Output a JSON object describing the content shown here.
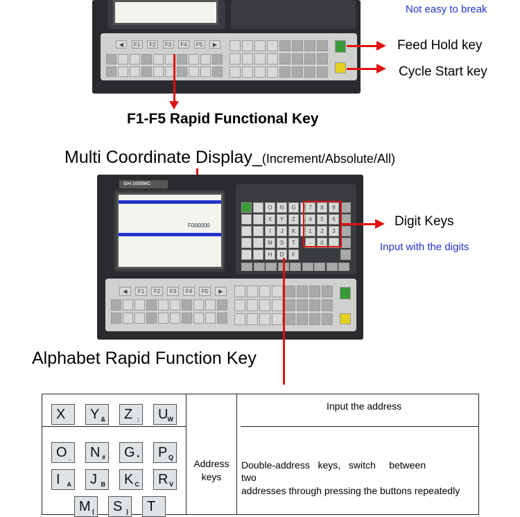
{
  "captions": {
    "not_easy": "Not easy to break",
    "feed_hold": "Feed Hold key",
    "cycle_start": "Cycle Start key",
    "f_keys": "F1-F5 Rapid Functional Key",
    "multi_coord": "Multi Coordinate Display_",
    "multi_coord_paren": "(Increment/Absolute/All)",
    "digit_keys": "Digit Keys",
    "input_digits": "Input with the digits",
    "alphabet": "Alphabet Rapid Function Key"
  },
  "panel": {
    "model": "GH-1000MC",
    "fkeys": [
      "◀",
      "F1",
      "F2",
      "F3",
      "F4",
      "F5",
      "▶"
    ],
    "letter_keys": [
      [
        "O",
        "N",
        "G",
        "P"
      ],
      [
        "X",
        "Y",
        "Z",
        "U"
      ],
      [
        "I",
        "J",
        "K",
        "R"
      ],
      [
        "M",
        "S",
        "T"
      ],
      [
        "H",
        "D",
        "F"
      ]
    ],
    "digit_keys": [
      [
        "7",
        "8",
        "9"
      ],
      [
        "4",
        "5",
        "6"
      ],
      [
        "1",
        "2",
        "3"
      ],
      [
        "-",
        "0",
        "."
      ]
    ],
    "screen_value": "F000000"
  },
  "table": {
    "row1_keys": [
      {
        "k": "X",
        "s": ""
      },
      {
        "k": "Y",
        "s": "&"
      },
      {
        "k": "Z",
        "s": ":"
      },
      {
        "k": "U",
        "s": "W"
      }
    ],
    "row2_keys": [
      {
        "k": "O",
        "s": "_"
      },
      {
        "k": "N",
        "s": "#"
      },
      {
        "k": "G",
        "s": "*"
      },
      {
        "k": "P",
        "s": "Q"
      },
      {
        "k": "I",
        "s": "A"
      },
      {
        "k": "J",
        "s": "B"
      },
      {
        "k": "K",
        "s": "C"
      },
      {
        "k": "R",
        "s": "V"
      },
      {
        "k": "M",
        "s": "("
      },
      {
        "k": "S",
        "s": ")"
      },
      {
        "k": "T",
        "s": ""
      }
    ],
    "category": "Address keys",
    "desc1": "Input the address",
    "desc2_line1": "Double-address   keys,   switch     between",
    "desc2_line2": "two",
    "desc2_line3": "addresses through pressing the buttons repeatedly"
  },
  "colors": {
    "arrow": "#e01010",
    "note": "#2233cc",
    "feed_hold": "#3a9a3a",
    "cycle_start": "#e6d020"
  }
}
